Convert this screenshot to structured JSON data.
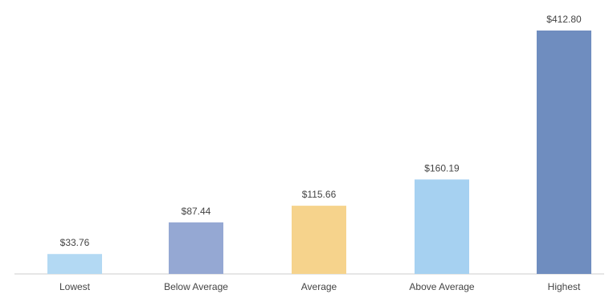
{
  "chart_data": {
    "type": "bar",
    "title": "",
    "xlabel": "",
    "ylabel": "",
    "categories": [
      "Lowest",
      "Below Average",
      "Average",
      "Above Average",
      "Highest"
    ],
    "values": [
      33.76,
      87.44,
      115.66,
      160.19,
      412.8
    ],
    "value_labels": [
      "$33.76",
      "$87.44",
      "$115.66",
      "$160.19",
      "$412.80"
    ],
    "colors": [
      "#b3d9f3",
      "#95a8d3",
      "#f6d38c",
      "#a6d1f1",
      "#6f8dbf"
    ],
    "ylim": [
      0,
      412.8
    ],
    "grid": false,
    "legend": "none",
    "axis_color": "#cccccc"
  }
}
